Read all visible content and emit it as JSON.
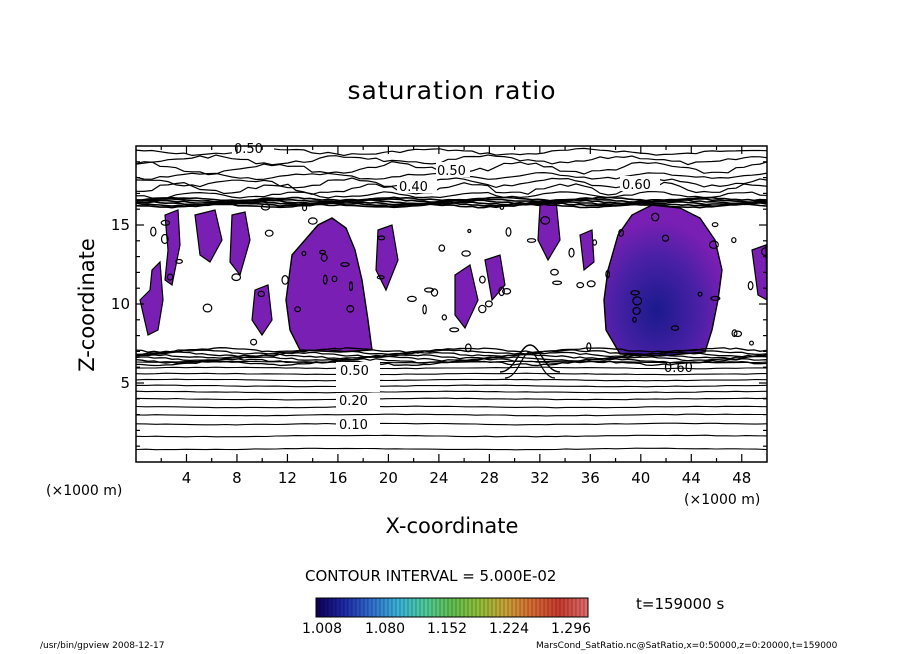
{
  "chart_data": {
    "type": "heatmap",
    "title": "saturation ratio",
    "xlabel": "X-coordinate",
    "ylabel": "Z-coordinate",
    "x_unit_label": "(×1000 m)",
    "z_unit_label": "(×1000 m)",
    "xlim": [
      0,
      50
    ],
    "ylim": [
      0,
      20
    ],
    "x_ticks": [
      "4",
      "8",
      "12",
      "16",
      "20",
      "24",
      "28",
      "32",
      "36",
      "40",
      "44",
      "48"
    ],
    "y_ticks": [
      "5",
      "10",
      "15"
    ],
    "contour_labels": [
      "0.50",
      "0.50",
      "0.40",
      "0.60",
      "0.50",
      "0.60",
      "0.20",
      "0.10"
    ],
    "contour_interval_text": "CONTOUR INTERVAL = 5.000E-02",
    "time_text": "t=159000 s",
    "colorbar": {
      "ticks": [
        "1.008",
        "1.080",
        "1.152",
        "1.224",
        "1.296"
      ],
      "colors": [
        "#10005a",
        "#1e2aa8",
        "#2f70cf",
        "#39b3d8",
        "#4ecb9a",
        "#5fbf4e",
        "#8fbf3a",
        "#c9a236",
        "#d66a32",
        "#c83a2e",
        "#e06a6a"
      ]
    },
    "fill_color": "#7a1fb3",
    "fill_dark_color": "#1a1a8c"
  },
  "footer": {
    "left": "/usr/bin/gpview   2008-12-17",
    "right": "MarsCond_SatRatio.nc@SatRatio,x=0:50000,z=0:20000,t=159000"
  }
}
